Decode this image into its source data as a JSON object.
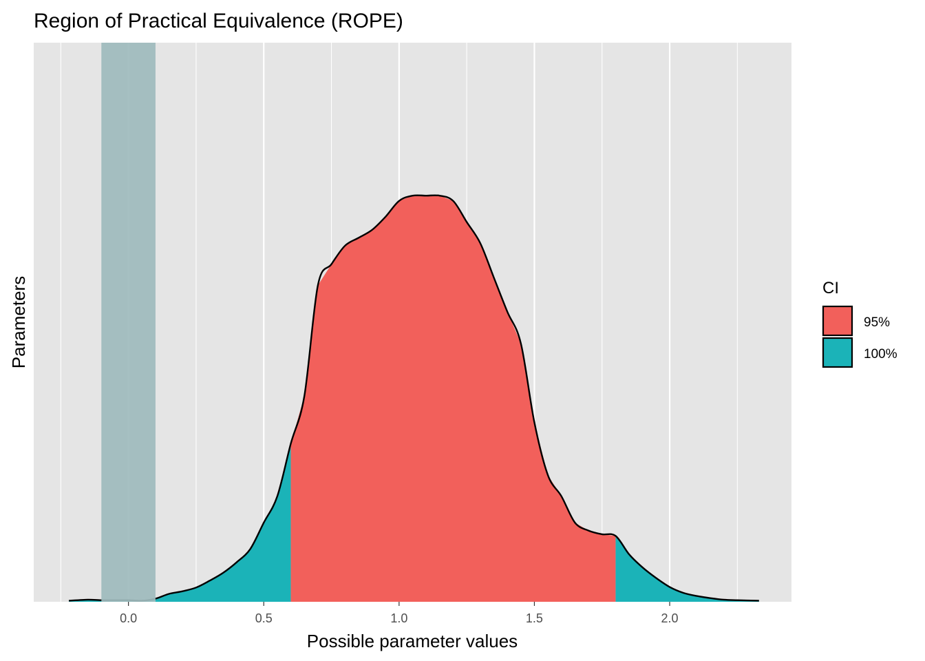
{
  "chart_data": {
    "type": "area",
    "title": "Region of Practical Equivalence (ROPE)",
    "xlabel": "Possible parameter values",
    "ylabel": "Parameters",
    "xlim": [
      -0.35,
      2.45
    ],
    "ylim": [
      0,
      1.06
    ],
    "x_ticks": [
      0.0,
      0.5,
      1.0,
      1.5,
      2.0
    ],
    "x_tick_labels": [
      "0.0",
      "0.5",
      "1.0",
      "1.5",
      "2.0"
    ],
    "grid": true,
    "rope": {
      "low": -0.1,
      "high": 0.1
    },
    "density": {
      "x": [
        -0.22,
        -0.15,
        -0.1,
        -0.05,
        0.0,
        0.05,
        0.1,
        0.15,
        0.2,
        0.25,
        0.3,
        0.35,
        0.4,
        0.45,
        0.5,
        0.55,
        0.6,
        0.65,
        0.7,
        0.75,
        0.8,
        0.85,
        0.9,
        0.95,
        1.0,
        1.05,
        1.1,
        1.15,
        1.2,
        1.25,
        1.3,
        1.35,
        1.4,
        1.45,
        1.5,
        1.55,
        1.6,
        1.65,
        1.7,
        1.75,
        1.8,
        1.85,
        1.9,
        1.95,
        2.0,
        2.05,
        2.1,
        2.15,
        2.2,
        2.25,
        2.33
      ],
      "y": [
        0.002,
        0.004,
        0.003,
        0.003,
        0.003,
        0.002,
        0.006,
        0.015,
        0.02,
        0.027,
        0.04,
        0.055,
        0.075,
        0.1,
        0.15,
        0.2,
        0.3,
        0.39,
        0.6,
        0.64,
        0.675,
        0.69,
        0.705,
        0.73,
        0.76,
        0.77,
        0.77,
        0.77,
        0.76,
        0.72,
        0.68,
        0.615,
        0.55,
        0.49,
        0.34,
        0.24,
        0.2,
        0.15,
        0.135,
        0.128,
        0.125,
        0.09,
        0.065,
        0.045,
        0.028,
        0.017,
        0.011,
        0.007,
        0.004,
        0.003,
        0.002
      ]
    },
    "ci_95": [
      0.6,
      1.8
    ],
    "legend": {
      "title": "CI",
      "position": "right",
      "entries": [
        {
          "label": "95%",
          "color": "#f2605b"
        },
        {
          "label": "100%",
          "color": "#1bb3b8"
        }
      ]
    },
    "colors": {
      "panel": "#e5e5e5",
      "grid": "#ffffff",
      "rope": "#9fbbbd",
      "outline": "#000000"
    }
  }
}
